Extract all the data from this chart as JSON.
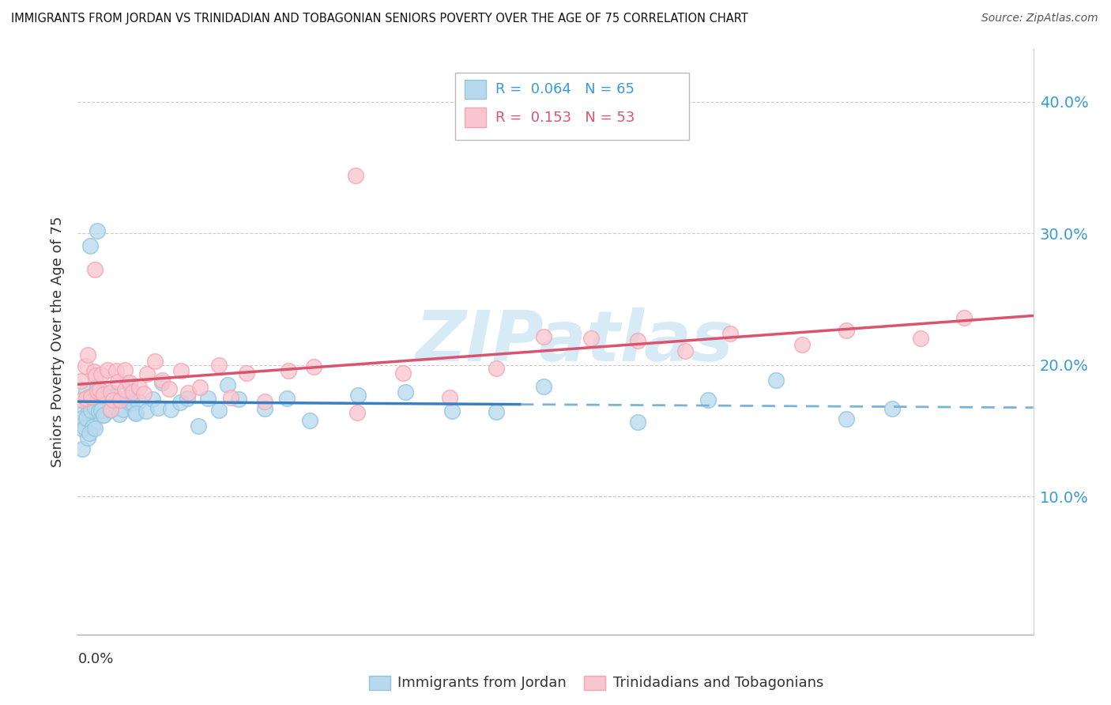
{
  "title": "IMMIGRANTS FROM JORDAN VS TRINIDADIAN AND TOBAGONIAN SENIORS POVERTY OVER THE AGE OF 75 CORRELATION CHART",
  "source": "Source: ZipAtlas.com",
  "ylabel": "Seniors Poverty Over the Age of 75",
  "xlim": [
    0.0,
    0.205
  ],
  "ylim": [
    -0.005,
    0.44
  ],
  "yticks": [
    0.0,
    0.1,
    0.2,
    0.3,
    0.4
  ],
  "ytick_labels": [
    "",
    "10.0%",
    "20.0%",
    "30.0%",
    "40.0%"
  ],
  "blue_R": 0.064,
  "blue_N": 65,
  "pink_R": 0.153,
  "pink_N": 53,
  "blue_color": "#92c5de",
  "pink_color": "#f4a6b2",
  "blue_fill": "#b8d9ed",
  "pink_fill": "#f9c5ce",
  "blue_line_color": "#3a7fc1",
  "pink_line_color": "#d9546e",
  "blue_dash_color": "#7ab3d8",
  "legend_label_blue": "Immigrants from Jordan",
  "legend_label_pink": "Trinidadians and Tobagonians",
  "watermark_color": "#d0e8f5",
  "grid_color": "#cccccc",
  "blue_x": [
    0.001,
    0.001,
    0.001,
    0.001,
    0.001,
    0.002,
    0.002,
    0.002,
    0.002,
    0.002,
    0.002,
    0.003,
    0.003,
    0.003,
    0.003,
    0.004,
    0.004,
    0.004,
    0.004,
    0.005,
    0.005,
    0.005,
    0.006,
    0.006,
    0.007,
    0.007,
    0.008,
    0.008,
    0.009,
    0.009,
    0.01,
    0.01,
    0.011,
    0.011,
    0.012,
    0.012,
    0.013,
    0.013,
    0.015,
    0.016,
    0.017,
    0.018,
    0.02,
    0.022,
    0.024,
    0.026,
    0.028,
    0.03,
    0.032,
    0.035,
    0.04,
    0.045,
    0.05,
    0.06,
    0.07,
    0.08,
    0.09,
    0.1,
    0.12,
    0.135,
    0.15,
    0.165,
    0.175,
    0.003,
    0.004
  ],
  "blue_y": [
    0.155,
    0.16,
    0.145,
    0.15,
    0.14,
    0.17,
    0.155,
    0.165,
    0.15,
    0.16,
    0.175,
    0.165,
    0.155,
    0.175,
    0.16,
    0.18,
    0.165,
    0.175,
    0.155,
    0.17,
    0.165,
    0.16,
    0.175,
    0.165,
    0.175,
    0.165,
    0.17,
    0.18,
    0.175,
    0.165,
    0.175,
    0.185,
    0.17,
    0.175,
    0.165,
    0.18,
    0.175,
    0.165,
    0.17,
    0.175,
    0.165,
    0.175,
    0.165,
    0.17,
    0.175,
    0.165,
    0.175,
    0.165,
    0.17,
    0.175,
    0.165,
    0.175,
    0.165,
    0.17,
    0.175,
    0.16,
    0.17,
    0.175,
    0.165,
    0.17,
    0.175,
    0.165,
    0.17,
    0.29,
    0.305
  ],
  "pink_x": [
    0.001,
    0.001,
    0.002,
    0.002,
    0.002,
    0.003,
    0.003,
    0.004,
    0.004,
    0.005,
    0.005,
    0.006,
    0.006,
    0.007,
    0.007,
    0.008,
    0.008,
    0.009,
    0.009,
    0.01,
    0.01,
    0.011,
    0.012,
    0.013,
    0.014,
    0.015,
    0.016,
    0.018,
    0.02,
    0.022,
    0.024,
    0.026,
    0.03,
    0.033,
    0.036,
    0.04,
    0.045,
    0.05,
    0.06,
    0.07,
    0.08,
    0.09,
    0.1,
    0.11,
    0.12,
    0.13,
    0.14,
    0.155,
    0.165,
    0.18,
    0.19,
    0.004,
    0.06
  ],
  "pink_y": [
    0.185,
    0.175,
    0.195,
    0.205,
    0.175,
    0.2,
    0.185,
    0.195,
    0.175,
    0.18,
    0.2,
    0.195,
    0.175,
    0.185,
    0.165,
    0.195,
    0.18,
    0.185,
    0.17,
    0.19,
    0.175,
    0.195,
    0.185,
    0.18,
    0.175,
    0.19,
    0.18,
    0.185,
    0.175,
    0.19,
    0.175,
    0.185,
    0.195,
    0.18,
    0.195,
    0.175,
    0.195,
    0.185,
    0.175,
    0.19,
    0.185,
    0.2,
    0.215,
    0.22,
    0.225,
    0.215,
    0.22,
    0.22,
    0.225,
    0.22,
    0.24,
    0.26,
    0.34
  ]
}
